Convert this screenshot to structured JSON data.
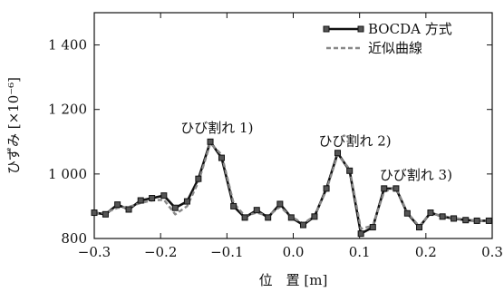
{
  "chart_data": {
    "type": "line",
    "xlabel": "位　置 [m]",
    "ylabel": "ひずみ [×10⁻⁶]",
    "xlim": [
      -0.3,
      0.3
    ],
    "ylim": [
      800,
      1500
    ],
    "x_ticks": [
      -0.3,
      -0.2,
      -0.1,
      0.0,
      0.1,
      0.2,
      0.3
    ],
    "x_tick_labels": [
      "−0.3",
      "−0.2",
      "−0.1",
      "0.0",
      "0.1",
      "0.2",
      "0.3"
    ],
    "y_ticks": [
      800,
      1000,
      1200,
      1400
    ],
    "y_tick_labels": [
      "800",
      "1 000",
      "1 200",
      "1 400"
    ],
    "legend": {
      "position": "top-right",
      "entries": [
        {
          "label": "BOCDA 方式",
          "style": "solid-square-markers"
        },
        {
          "label": "近似曲線",
          "style": "dashed"
        }
      ]
    },
    "annotations": [
      {
        "text": "ひび割れ 1)",
        "x": -0.115,
        "y": 1103
      },
      {
        "text": "ひび割れ 2)",
        "x": 0.093,
        "y": 1063
      },
      {
        "text": "ひび割れ 3)",
        "x": 0.185,
        "y": 958
      }
    ],
    "series": [
      {
        "name": "BOCDA 方式",
        "color": "#111111",
        "x": [
          -0.3,
          -0.283,
          -0.265,
          -0.248,
          -0.23,
          -0.213,
          -0.195,
          -0.178,
          -0.16,
          -0.143,
          -0.125,
          -0.108,
          -0.09,
          -0.073,
          -0.055,
          -0.038,
          -0.02,
          -0.003,
          0.015,
          0.032,
          0.05,
          0.067,
          0.085,
          0.102,
          0.12,
          0.137,
          0.155,
          0.172,
          0.19,
          0.207,
          0.225,
          0.242,
          0.26,
          0.277,
          0.295
        ],
        "y": [
          880,
          875,
          905,
          890,
          918,
          925,
          933,
          895,
          915,
          985,
          1100,
          1050,
          900,
          865,
          888,
          865,
          907,
          865,
          842,
          868,
          955,
          1065,
          1010,
          815,
          835,
          955,
          955,
          878,
          835,
          880,
          868,
          862,
          857,
          855,
          855
        ]
      },
      {
        "name": "近似曲線",
        "color": "#888888",
        "x": [
          -0.3,
          -0.283,
          -0.265,
          -0.248,
          -0.23,
          -0.213,
          -0.195,
          -0.178,
          -0.16,
          -0.143,
          -0.125,
          -0.108,
          -0.09,
          -0.073,
          -0.055,
          -0.038,
          -0.02,
          -0.003,
          0.015,
          0.032,
          0.05,
          0.067,
          0.085,
          0.102,
          0.12,
          0.137,
          0.155,
          0.172,
          0.19,
          0.207,
          0.225,
          0.242,
          0.26,
          0.277,
          0.295
        ],
        "y": [
          878,
          880,
          895,
          898,
          910,
          918,
          920,
          875,
          900,
          975,
          1095,
          1060,
          910,
          870,
          880,
          870,
          898,
          868,
          846,
          870,
          950,
          1060,
          1015,
          830,
          840,
          945,
          958,
          880,
          838,
          878,
          870,
          864,
          858,
          856,
          855
        ]
      }
    ]
  }
}
